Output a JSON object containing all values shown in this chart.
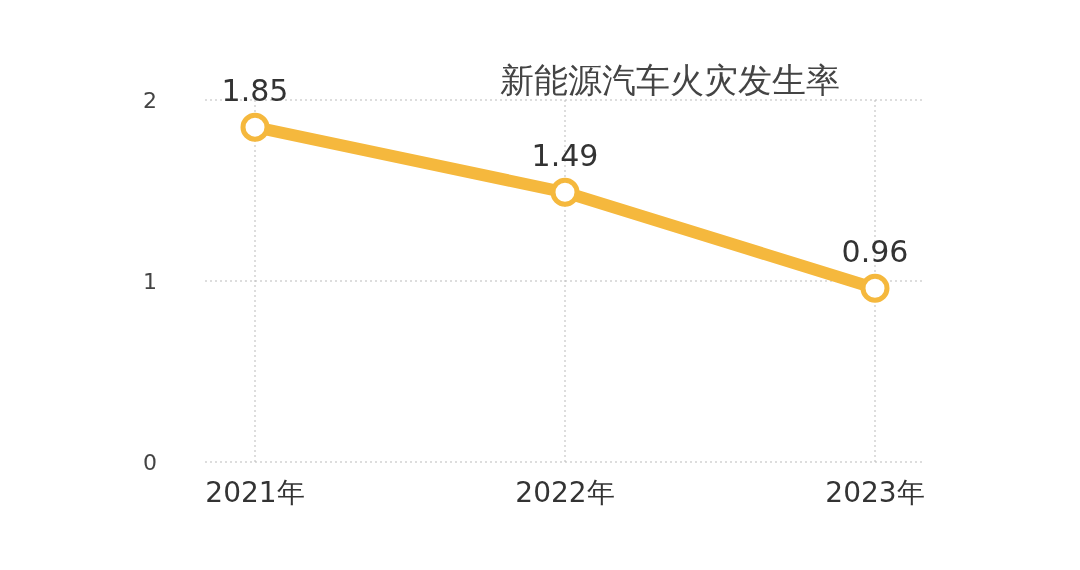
{
  "chart_data": {
    "type": "line",
    "title": "新能源汽车火灾发生率",
    "categories": [
      "2021年",
      "2022年",
      "2023年"
    ],
    "series": [
      {
        "color": "#f5b83d",
        "values": [
          1.85,
          1.49,
          0.96
        ]
      }
    ],
    "ylim": [
      0,
      2
    ],
    "yticks": [
      0,
      1,
      2
    ],
    "grid": true,
    "marker": "circle",
    "data_labels": true
  }
}
